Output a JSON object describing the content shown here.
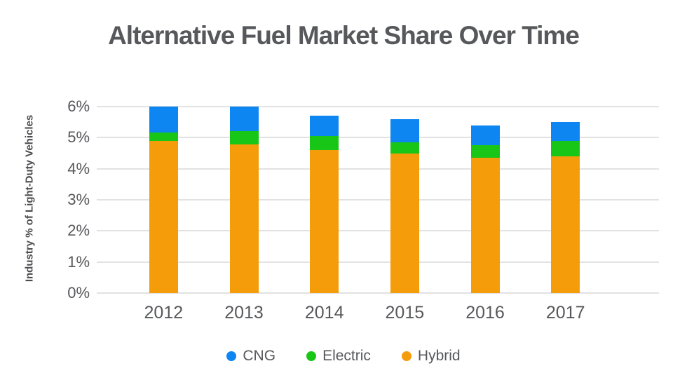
{
  "title": "Alternative Fuel Market Share Over Time",
  "chart_data": {
    "type": "bar",
    "stacked": true,
    "title": "Alternative Fuel Market Share Over Time",
    "categories": [
      "2012",
      "2013",
      "2014",
      "2015",
      "2016",
      "2017"
    ],
    "series": [
      {
        "name": "CNG",
        "color": "#0e86f2",
        "values": [
          0.9,
          0.8,
          0.65,
          0.75,
          0.65,
          0.6
        ]
      },
      {
        "name": "Electric",
        "color": "#17c617",
        "values": [
          0.3,
          0.45,
          0.45,
          0.35,
          0.4,
          0.5
        ]
      },
      {
        "name": "Hybrid",
        "color": "#f59c0b",
        "values": [
          5.3,
          4.85,
          4.6,
          4.5,
          4.35,
          4.4
        ]
      }
    ],
    "stack_bottom_to_top": [
      "Hybrid",
      "Electric",
      "CNG"
    ],
    "xlabel": "",
    "ylabel": "Industry % of Light-Duty Vehicles",
    "ylim": [
      0,
      6
    ],
    "y_ticks": [
      "0%",
      "1%",
      "2%",
      "3%",
      "4%",
      "5%",
      "6%"
    ],
    "grid": true,
    "legend_position": "bottom"
  },
  "colors": {
    "title_text": "#57585b",
    "axis_text": "#57585b",
    "gridline": "#e2e2e2",
    "background": "#ffffff"
  }
}
